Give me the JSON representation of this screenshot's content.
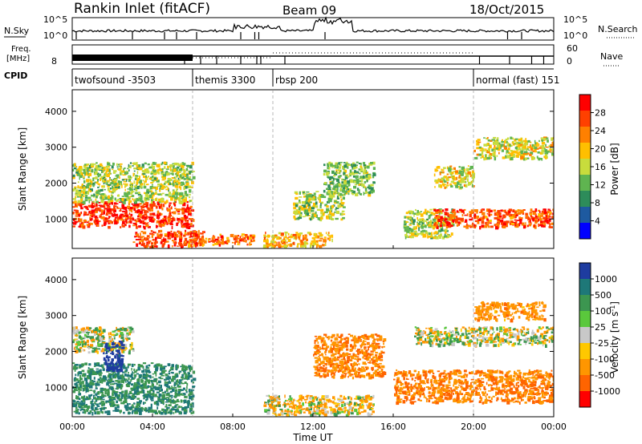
{
  "header": {
    "station": "Rankin Inlet (fitACF)",
    "beam": "Beam 09",
    "date": "18/Oct/2015"
  },
  "left_labels": {
    "nsky": "N.Sky",
    "freq_line1": "Freq.",
    "freq_line2": "[MHz]",
    "cpid": "CPID",
    "nsky_top": "10^5",
    "nsky_bot": "10^0",
    "freq_val": "8"
  },
  "right_labels": {
    "nsearch": "N.Search",
    "nave": "Nave",
    "nsearch_top": "10^5",
    "nsearch_bot": "10^0",
    "nave_top": "60",
    "nave_bot": "0"
  },
  "cpid_segments": [
    {
      "label": "twofsound -3503",
      "start": 0.0,
      "end": 6.0
    },
    {
      "label": "themis 3300",
      "start": 6.0,
      "end": 10.0
    },
    {
      "label": "rbsp 200",
      "start": 10.0,
      "end": 20.0
    },
    {
      "label": "normal (fast) 151",
      "start": 20.0,
      "end": 24.0
    }
  ],
  "x_axis": {
    "label": "Time UT",
    "ticks": [
      "00:00",
      "04:00",
      "08:00",
      "12:00",
      "16:00",
      "20:00",
      "00:00"
    ],
    "range_hours": [
      0,
      24
    ]
  },
  "power_panel": {
    "ylabel": "Slant Range [km]",
    "yticks": [
      "4000",
      "3000",
      "2000",
      "1000"
    ],
    "cbar_label": "Power [dB]",
    "cbar_ticks": [
      "28",
      "24",
      "20",
      "16",
      "12",
      "8",
      "4"
    ],
    "cbar_colors": [
      "#ff0000",
      "#ff4000",
      "#ff8000",
      "#ffbf00",
      "#c8dc3c",
      "#5fb450",
      "#2d8c5a",
      "#1e5aa0",
      "#0000ff"
    ]
  },
  "velocity_panel": {
    "ylabel": "Slant Range [km]",
    "yticks": [
      "4000",
      "3000",
      "2000",
      "1000"
    ],
    "cbar_label": "Velocity [m s^-1]",
    "cbar_ticks": [
      "1000",
      "500",
      "100",
      "25",
      "-25",
      "-100",
      "-500",
      "-1000"
    ],
    "cbar_colors": [
      "#1e3ca0",
      "#1e7878",
      "#3c9650",
      "#5ac83c",
      "#c8c8c8",
      "#ffc800",
      "#ff9600",
      "#ff6400",
      "#ff0000"
    ]
  },
  "chart_data": [
    {
      "type": "heatmap",
      "title": "Power",
      "xlabel": "Time UT",
      "ylabel": "Slant Range [km]",
      "xlim": [
        0,
        24
      ],
      "ylim": [
        180,
        4600
      ],
      "colorbar": {
        "label": "Power [dB]",
        "range": [
          0,
          30
        ],
        "ticks": [
          4,
          8,
          12,
          16,
          20,
          24,
          28
        ]
      },
      "regions": [
        {
          "t": [
            0.0,
            6.0
          ],
          "r": [
            800,
            1500
          ],
          "level": "high",
          "approx_value": 28
        },
        {
          "t": [
            0.0,
            6.0
          ],
          "r": [
            1500,
            2600
          ],
          "level": "mid",
          "approx_value": 14
        },
        {
          "t": [
            3.0,
            6.5
          ],
          "r": [
            250,
            700
          ],
          "level": "high",
          "approx_value": 26
        },
        {
          "t": [
            6.0,
            9.0
          ],
          "r": [
            300,
            600
          ],
          "level": "high",
          "approx_value": 24
        },
        {
          "t": [
            9.5,
            13.0
          ],
          "r": [
            250,
            650
          ],
          "level": "mid-high",
          "approx_value": 20
        },
        {
          "t": [
            11.0,
            13.5
          ],
          "r": [
            1000,
            1800
          ],
          "level": "mid",
          "approx_value": 14
        },
        {
          "t": [
            12.5,
            15.0
          ],
          "r": [
            1700,
            2600
          ],
          "level": "mid",
          "approx_value": 12
        },
        {
          "t": [
            16.5,
            19.0
          ],
          "r": [
            500,
            1300
          ],
          "level": "mid",
          "approx_value": 14
        },
        {
          "t": [
            18.0,
            20.0
          ],
          "r": [
            1900,
            2500
          ],
          "level": "mid",
          "approx_value": 16
        },
        {
          "t": [
            18.0,
            24.0
          ],
          "r": [
            800,
            1300
          ],
          "level": "high",
          "approx_value": 26
        },
        {
          "t": [
            20.0,
            24.0
          ],
          "r": [
            2700,
            3300
          ],
          "level": "mid",
          "approx_value": 16
        }
      ]
    },
    {
      "type": "heatmap",
      "title": "Velocity",
      "xlabel": "Time UT",
      "ylabel": "Slant Range [km]",
      "xlim": [
        0,
        24
      ],
      "ylim": [
        180,
        4600
      ],
      "colorbar": {
        "label": "Velocity [m s^-1]",
        "ticks": [
          1000,
          500,
          100,
          25,
          -25,
          -100,
          -500,
          -1000
        ]
      },
      "regions": [
        {
          "t": [
            0.0,
            6.0
          ],
          "r": [
            300,
            1700
          ],
          "sign": "positive",
          "approx_value": 300
        },
        {
          "t": [
            0.0,
            3.0
          ],
          "r": [
            2000,
            2700
          ],
          "sign": "near-zero",
          "approx_value": 0
        },
        {
          "t": [
            1.5,
            2.5
          ],
          "r": [
            1500,
            2300
          ],
          "sign": "positive",
          "approx_value": 800
        },
        {
          "t": [
            9.5,
            15.0
          ],
          "r": [
            250,
            800
          ],
          "sign": "mixed",
          "approx_value": -50
        },
        {
          "t": [
            12.0,
            15.5
          ],
          "r": [
            1300,
            2500
          ],
          "sign": "negative",
          "approx_value": -300
        },
        {
          "t": [
            16.0,
            24.0
          ],
          "r": [
            600,
            1500
          ],
          "sign": "negative",
          "approx_value": -300
        },
        {
          "t": [
            17.0,
            24.0
          ],
          "r": [
            2200,
            2700
          ],
          "sign": "near-zero",
          "approx_value": 0
        },
        {
          "t": [
            20.0,
            23.5
          ],
          "r": [
            2900,
            3400
          ],
          "sign": "negative",
          "approx_value": -200
        }
      ]
    }
  ]
}
